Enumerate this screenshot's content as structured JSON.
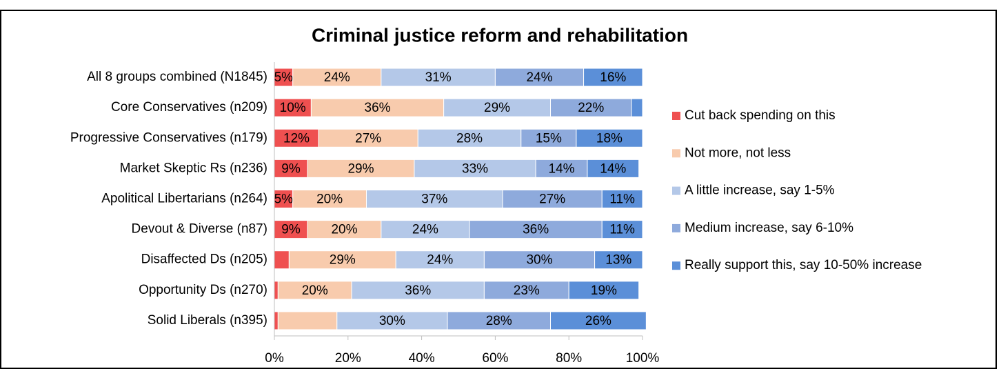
{
  "chart_data": {
    "type": "stacked_bar_horizontal",
    "title": "Criminal justice reform and rehabilitation",
    "categories": [
      "All 8 groups combined (N1845)",
      "Core Conservatives (n209)",
      "Progressive Conservatives (n179)",
      "Market Skeptic Rs (n236)",
      "Apolitical Libertarians (n264)",
      "Devout & Diverse (n87)",
      "Disaffected Ds (n205)",
      "Opportunity Ds (n270)",
      "Solid Liberals (n395)"
    ],
    "series": [
      {
        "name": "Cut back spending on this",
        "color": "#ef5050",
        "values": [
          5,
          10,
          12,
          9,
          5,
          9,
          4,
          1,
          1
        ],
        "value_labels": [
          "5%",
          "10%",
          "12%",
          "9%",
          "5%",
          "9%",
          null,
          null,
          null
        ]
      },
      {
        "name": "Not more, not less",
        "color": "#f8cbad",
        "values": [
          24,
          36,
          27,
          29,
          20,
          20,
          29,
          20,
          16
        ],
        "value_labels": [
          "24%",
          "36%",
          "27%",
          "29%",
          "20%",
          "20%",
          "29%",
          "20%",
          null
        ]
      },
      {
        "name": "A little increase, say 1-5%",
        "color": "#b4c8e8",
        "values": [
          31,
          29,
          28,
          33,
          37,
          24,
          24,
          36,
          30
        ],
        "value_labels": [
          "31%",
          "29%",
          "28%",
          "33%",
          "37%",
          "24%",
          "24%",
          "36%",
          "30%"
        ]
      },
      {
        "name": "Medium increase, say 6-10%",
        "color": "#8eaadc",
        "values": [
          24,
          22,
          15,
          14,
          27,
          36,
          30,
          23,
          28
        ],
        "value_labels": [
          "24%",
          "22%",
          "15%",
          "14%",
          "27%",
          "36%",
          "30%",
          "23%",
          "28%"
        ]
      },
      {
        "name": "Really support this, say 10-50% increase",
        "color": "#5b8fd8",
        "values": [
          16,
          3,
          18,
          14,
          11,
          11,
          13,
          19,
          26
        ],
        "value_labels": [
          "16%",
          null,
          "18%",
          "14%",
          "11%",
          "11%",
          "13%",
          "19%",
          "26%"
        ]
      }
    ],
    "xlim": [
      0,
      100
    ],
    "xticks": [
      {
        "value": 0,
        "label": "0%"
      },
      {
        "value": 20,
        "label": "20%"
      },
      {
        "value": 40,
        "label": "40%"
      },
      {
        "value": 60,
        "label": "60%"
      },
      {
        "value": 80,
        "label": "80%"
      },
      {
        "value": 100,
        "label": "100%"
      }
    ],
    "legend": "right"
  }
}
